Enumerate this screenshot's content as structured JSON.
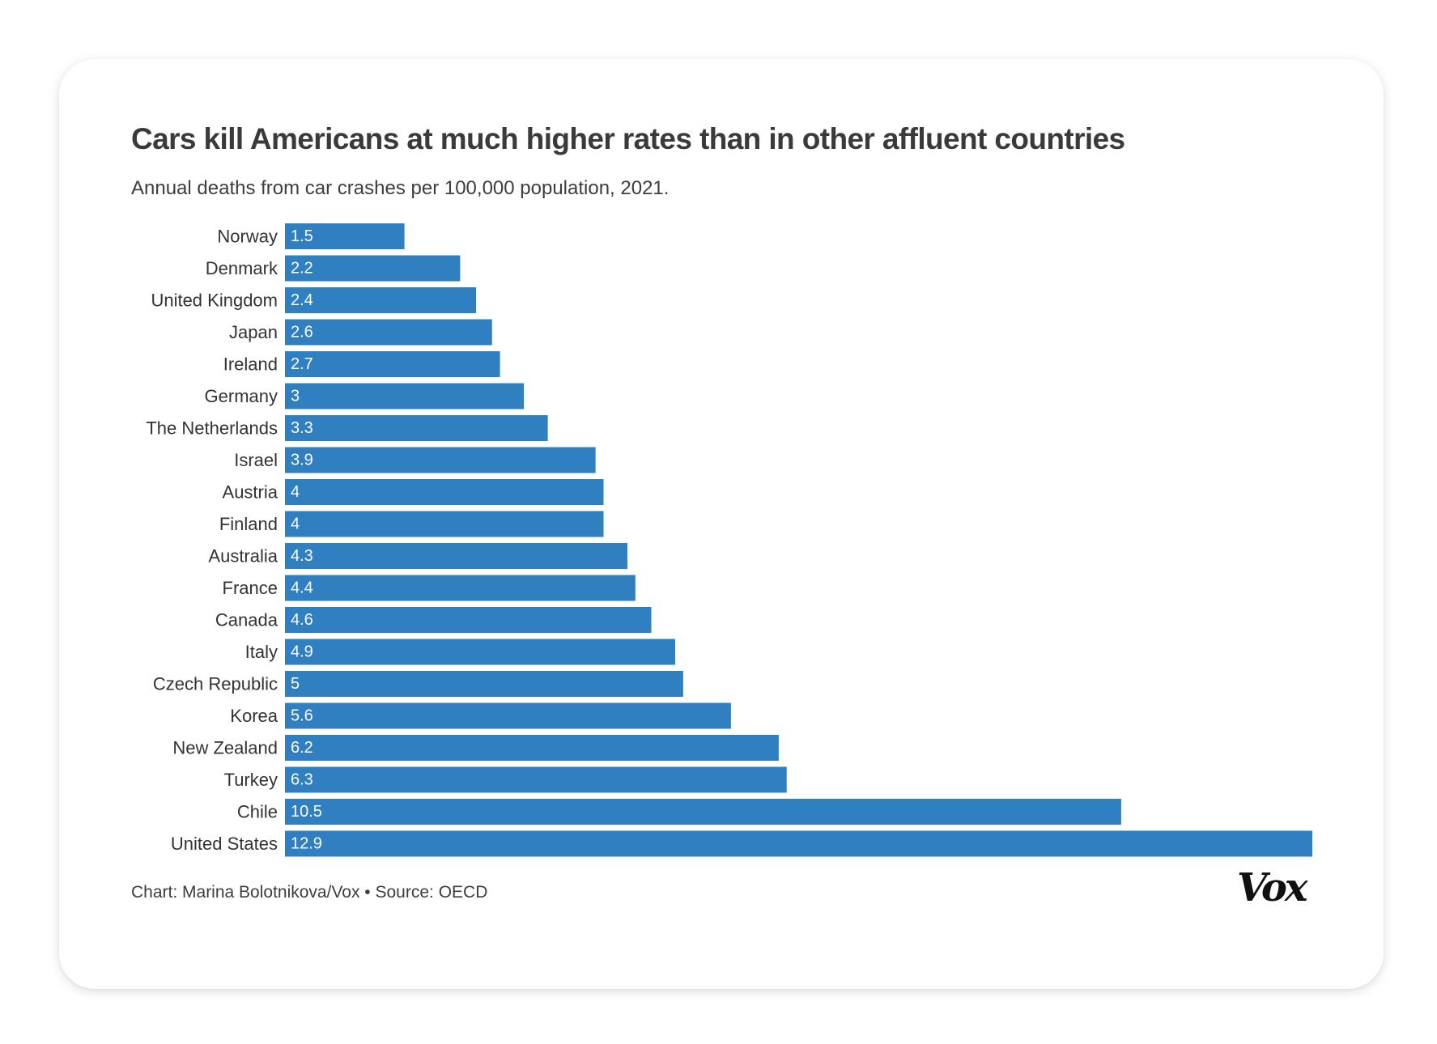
{
  "brand_logo": "Vox",
  "footer": "Chart: Marina Bolotnikova/Vox • Source: OECD",
  "colors": {
    "bar": "#2f7fc1",
    "bar_label": "#ffffff",
    "category_label": "#333333"
  },
  "chart_data": {
    "type": "bar",
    "orientation": "horizontal",
    "title": "Cars kill Americans at much higher rates than in other affluent countries",
    "subtitle": "Annual deaths from car crashes per 100,000 population, 2021.",
    "xlabel": "",
    "ylabel": "",
    "grid": false,
    "legend": "none",
    "xlim": [
      0,
      12.9
    ],
    "categories": [
      "Norway",
      "Denmark",
      "United Kingdom",
      "Japan",
      "Ireland",
      "Germany",
      "The Netherlands",
      "Israel",
      "Austria",
      "Finland",
      "Australia",
      "France",
      "Canada",
      "Italy",
      "Czech Republic",
      "Korea",
      "New Zealand",
      "Turkey",
      "Chile",
      "United States"
    ],
    "values": [
      1.5,
      2.2,
      2.4,
      2.6,
      2.7,
      3,
      3.3,
      3.9,
      4,
      4,
      4.3,
      4.4,
      4.6,
      4.9,
      5,
      5.6,
      6.2,
      6.3,
      10.5,
      12.9
    ],
    "data_labels": [
      "1.5",
      "2.2",
      "2.4",
      "2.6",
      "2.7",
      "3",
      "3.3",
      "3.9",
      "4",
      "4",
      "4.3",
      "4.4",
      "4.6",
      "4.9",
      "5",
      "5.6",
      "6.2",
      "6.3",
      "10.5",
      "12.9"
    ]
  }
}
